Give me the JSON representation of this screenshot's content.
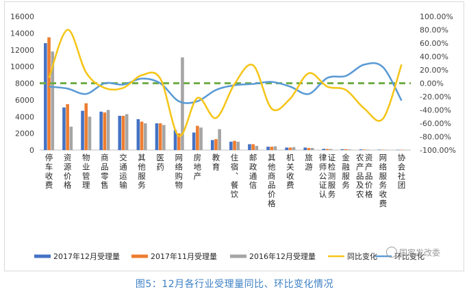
{
  "caption": "图5：12月各行业受理量同比、环比变化情况",
  "watermark": "国家发改委",
  "chart_data": {
    "type": "bar+line",
    "categories": [
      "停车收费",
      "资源价格",
      "物业管理",
      "商品零售",
      "交通运输",
      "其他服务",
      "医药",
      "网络购物",
      "房地产",
      "教育",
      "住宿、餐饮",
      "邮政通信",
      "其他商品价格",
      "机关收费",
      "旅游",
      "律师公证认证检测服务",
      "金融服务",
      "农产品及农资产品价格",
      "网络服务收费",
      "协会社团"
    ],
    "left_axis": {
      "min": 0,
      "max": 16000,
      "step": 2000,
      "ticks": [
        "0",
        "2000",
        "4000",
        "6000",
        "8000",
        "10000",
        "12000",
        "14000",
        "16000"
      ]
    },
    "right_axis": {
      "min": -100,
      "max": 100,
      "step": 20,
      "ticks": [
        "-100.00%",
        "-80.00%",
        "-60.00%",
        "-40.00%",
        "-20.00%",
        "0.00%",
        "20.00%",
        "40.00%",
        "60.00%",
        "80.00%",
        "100.00%"
      ]
    },
    "series": [
      {
        "name": "2017年12月受理量",
        "type": "bar",
        "axis": "left",
        "color": "#4472c4",
        "values": [
          12800,
          5100,
          4700,
          4600,
          4100,
          3700,
          3200,
          2400,
          2100,
          1200,
          1000,
          700,
          400,
          300,
          300,
          150,
          100,
          80,
          50,
          30
        ]
      },
      {
        "name": "2017年11月受理量",
        "type": "bar",
        "axis": "left",
        "color": "#ed7d31",
        "values": [
          13500,
          5500,
          5600,
          4500,
          4100,
          3400,
          3200,
          2000,
          2900,
          1300,
          1100,
          700,
          400,
          300,
          250,
          130,
          100,
          60,
          40,
          40
        ]
      },
      {
        "name": "2016年12月受理量",
        "type": "bar",
        "axis": "left",
        "color": "#a5a5a5",
        "values": [
          11800,
          2800,
          4000,
          4800,
          4300,
          3200,
          3000,
          11100,
          2700,
          2500,
          1000,
          500,
          450,
          350,
          250,
          120,
          80,
          50,
          30,
          20
        ]
      },
      {
        "name": "同比变化",
        "type": "line",
        "axis": "right",
        "color": "#f5c518",
        "values": [
          8,
          80,
          16,
          -7,
          -7,
          12,
          7,
          -79,
          -22,
          -52,
          -1,
          27,
          -38,
          -23,
          15,
          -5,
          -10,
          -38,
          -53,
          28
        ]
      },
      {
        "name": "环比变化",
        "type": "line",
        "axis": "right",
        "color": "#5b9bd5",
        "values": [
          -5,
          -8,
          -16,
          0,
          -2,
          7,
          0,
          -27,
          -27,
          -10,
          -3,
          -1,
          2,
          -5,
          -16,
          8,
          11,
          28,
          24,
          -26
        ]
      }
    ],
    "reference_line": {
      "axis": "right",
      "value": 0,
      "color": "#70ad47",
      "style": "dashed"
    },
    "legend": {
      "position": "bottom"
    },
    "grid": false
  }
}
